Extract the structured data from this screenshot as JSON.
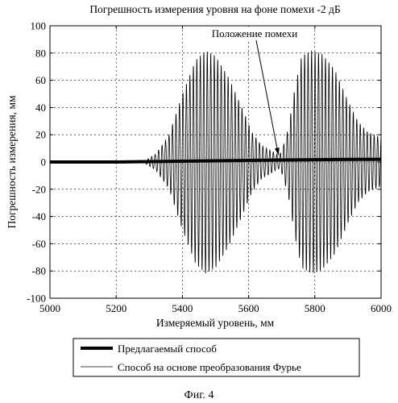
{
  "figure_caption": "Фиг. 4",
  "annotation": {
    "text": "Положение помехи",
    "x": 5690,
    "y": 5
  },
  "chart_data": {
    "type": "line",
    "title": "Погрешность измерения уровня на фоне помехи -2 дБ",
    "xlabel": "Измеряемый уровень, мм",
    "ylabel": "Погрешность измерения, мм",
    "xlim": [
      5000,
      6000
    ],
    "ylim": [
      -100,
      100
    ],
    "xticks": [
      5000,
      5200,
      5400,
      5600,
      5800,
      6000
    ],
    "yticks": [
      100,
      80,
      60,
      40,
      20,
      0,
      -20,
      -40,
      -60,
      -80,
      -100
    ],
    "grid": true,
    "legend_position": "bottom",
    "series": [
      {
        "name": "Предлагаемый способ",
        "color": "#000000",
        "style": "thick",
        "x": [
          5000,
          5100,
          5200,
          5300,
          5400,
          5500,
          5600,
          5700,
          5800,
          5900,
          6000
        ],
        "y": [
          0,
          0,
          0,
          0.3,
          0.6,
          0.9,
          1.2,
          1.5,
          1.7,
          1.9,
          2.0
        ]
      },
      {
        "name": "Способ на основе преобразования Фурье",
        "color": "#000000",
        "style": "thin",
        "oscillation_period_mm": 10.5,
        "envelope_x": [
          5000,
          5280,
          5320,
          5360,
          5400,
          5440,
          5470,
          5500,
          5540,
          5580,
          5610,
          5640,
          5670,
          5690,
          5700,
          5720,
          5740,
          5760,
          5790,
          5820,
          5860,
          5900,
          5930,
          5960,
          6000
        ],
        "envelope_y": [
          0,
          0,
          6,
          20,
          50,
          75,
          82,
          78,
          62,
          40,
          22,
          12,
          8,
          5,
          8,
          25,
          55,
          78,
          82,
          80,
          68,
          45,
          30,
          22,
          18
        ]
      }
    ]
  }
}
